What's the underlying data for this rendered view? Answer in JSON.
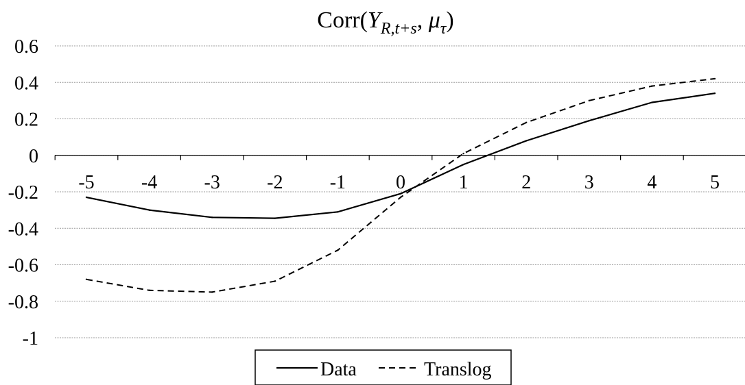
{
  "chart_data": {
    "type": "line",
    "title": {
      "prefix": "Corr(",
      "var1": "Y",
      "var1_sub": "R,t+s",
      "separator": ", ",
      "var2": "μ",
      "var2_sub": "τ",
      "suffix": ")"
    },
    "x": [
      -5,
      -4,
      -3,
      -2,
      -1,
      0,
      1,
      2,
      3,
      4,
      5
    ],
    "x_tick_labels": [
      "-5",
      "-4",
      "-3",
      "-2",
      "-1",
      "0",
      "1",
      "2",
      "3",
      "4",
      "5"
    ],
    "ylim": [
      -1,
      0.6
    ],
    "y_ticks": [
      0.6,
      0.4,
      0.2,
      0,
      -0.2,
      -0.4,
      -0.6,
      -0.8,
      -1
    ],
    "y_tick_labels": [
      "0.6",
      "0.4",
      "0.2",
      "0",
      "-0.2",
      "-0.4",
      "-0.6",
      "-0.8",
      "-1"
    ],
    "grid": true,
    "legend_position": "bottom-center",
    "series": [
      {
        "name": "Data",
        "style": "solid",
        "color": "#000000",
        "values": [
          -0.23,
          -0.3,
          -0.34,
          -0.345,
          -0.31,
          -0.21,
          -0.05,
          0.08,
          0.19,
          0.29,
          0.34
        ]
      },
      {
        "name": "Translog",
        "style": "dashed",
        "color": "#000000",
        "values": [
          -0.68,
          -0.74,
          -0.75,
          -0.69,
          -0.52,
          -0.23,
          0.01,
          0.18,
          0.3,
          0.38,
          0.42
        ]
      }
    ]
  }
}
